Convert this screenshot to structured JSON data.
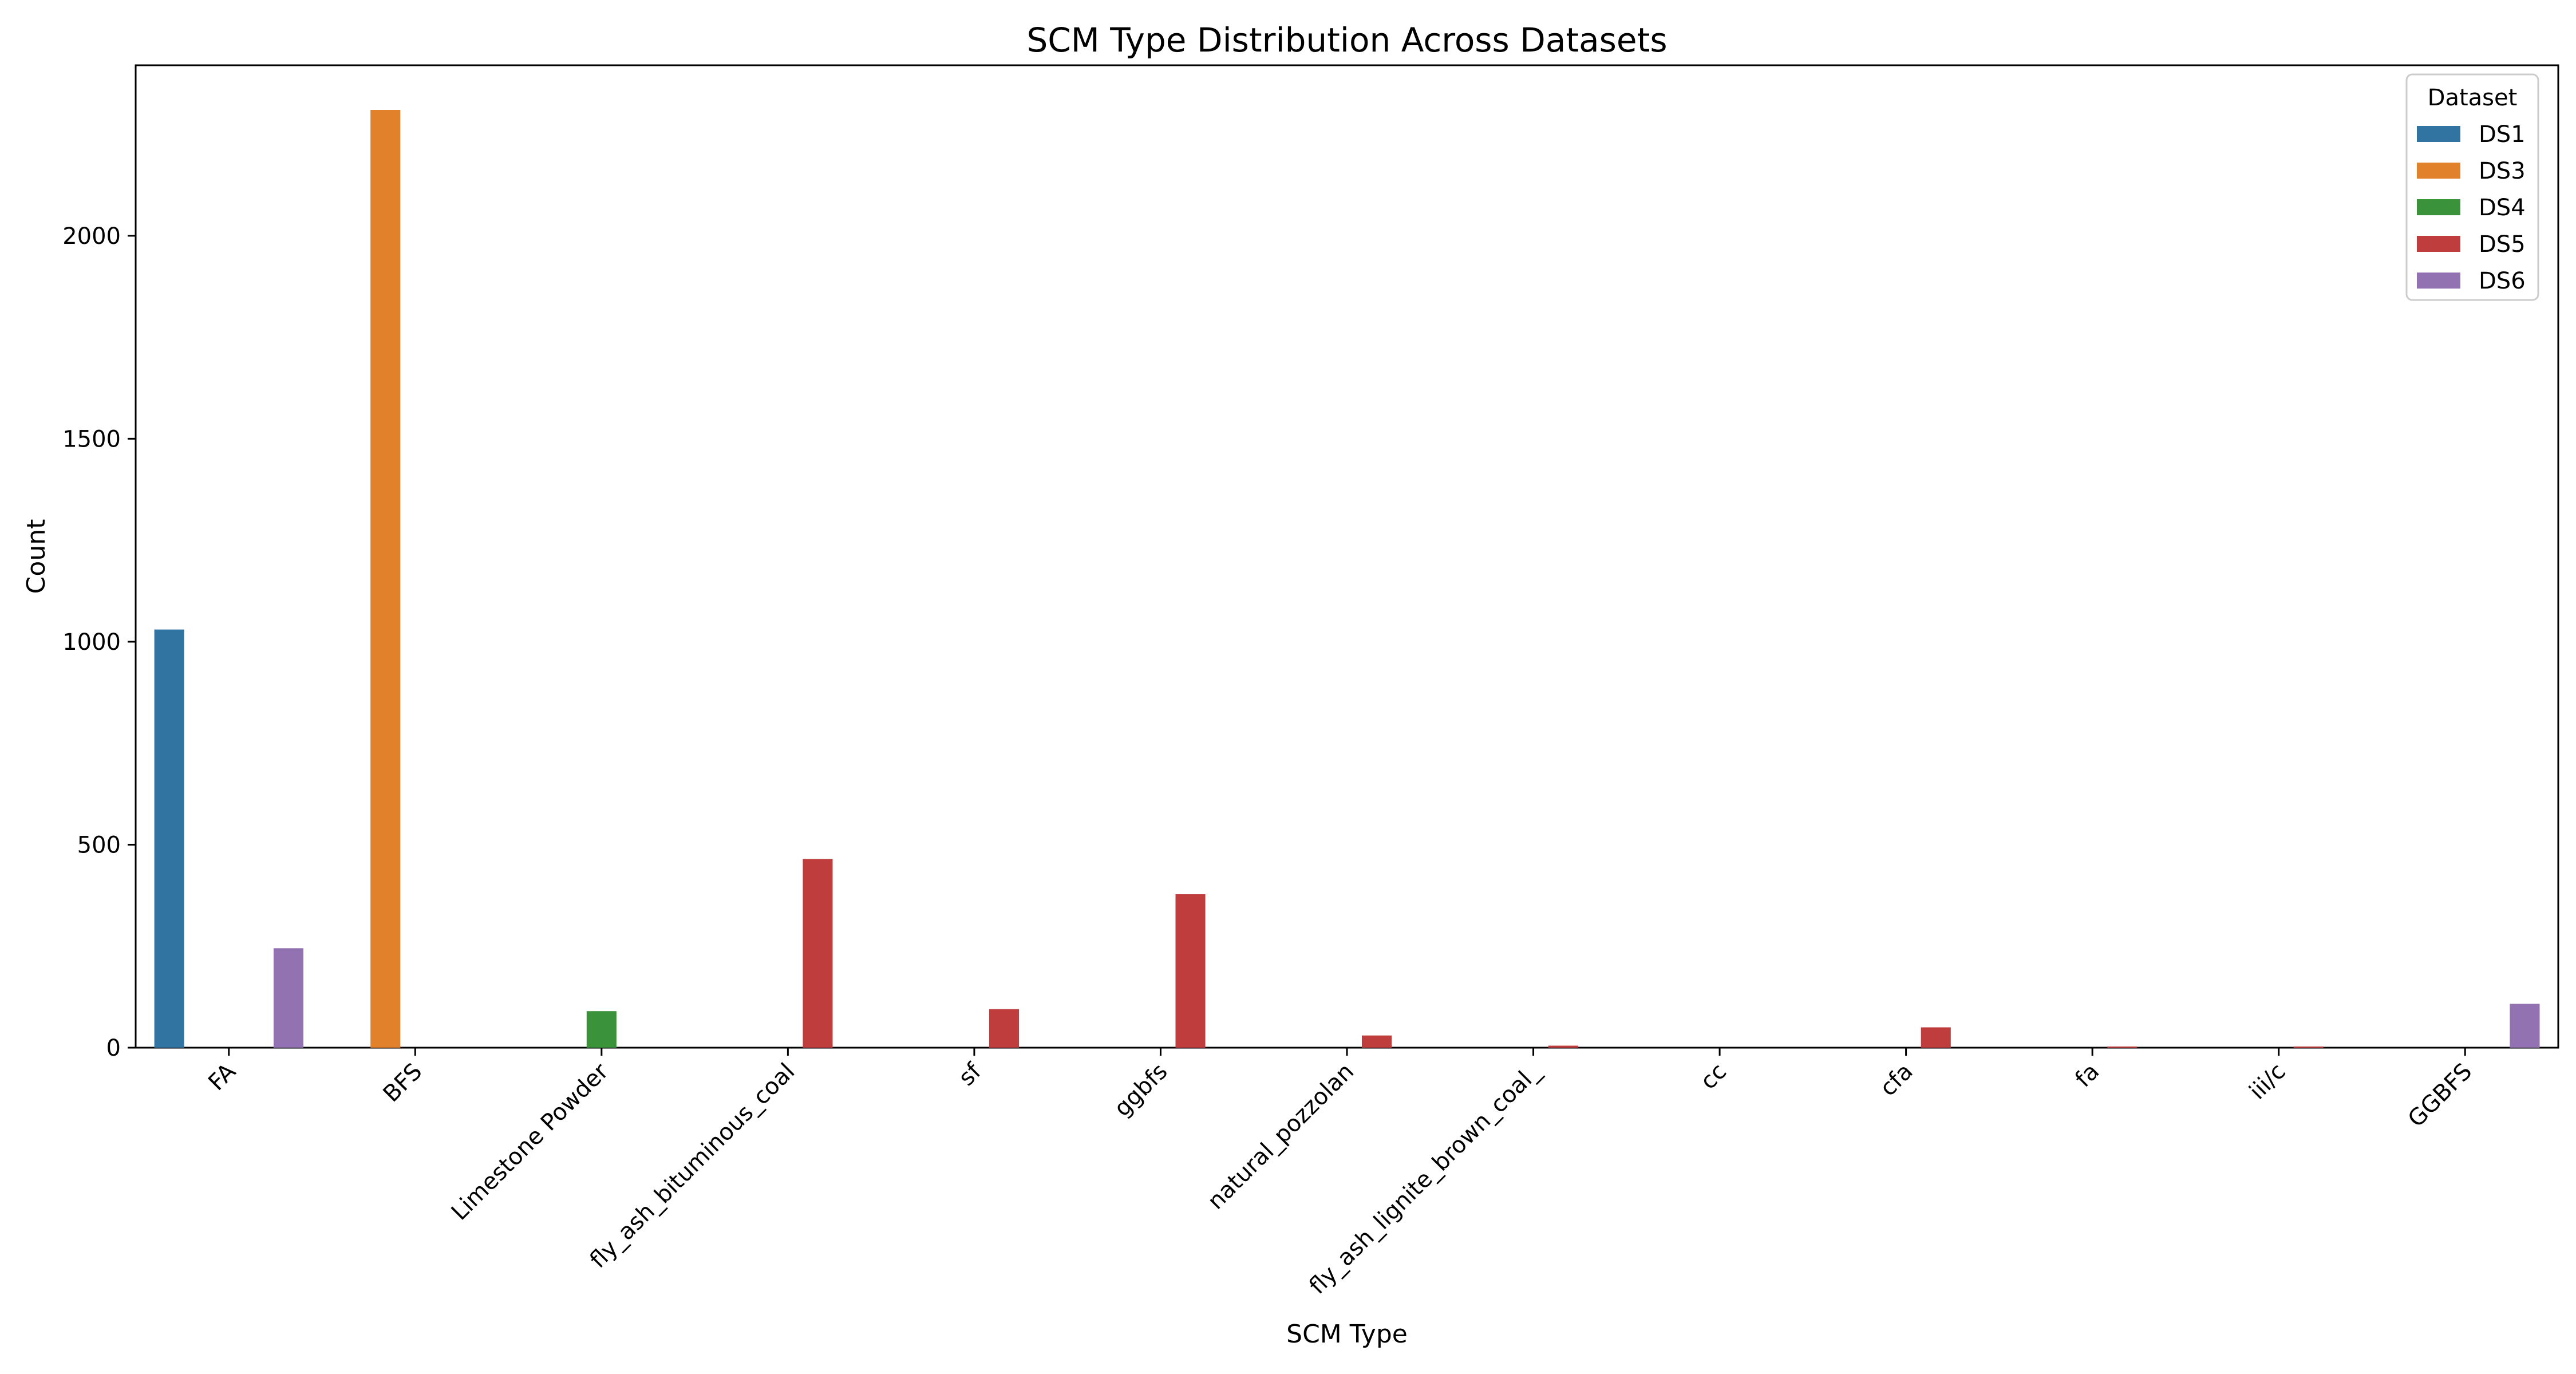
{
  "chart_data": {
    "type": "bar",
    "title": "SCM Type Distribution Across Datasets",
    "xlabel": "SCM Type",
    "ylabel": "Count",
    "ylim": [
      0,
      2420
    ],
    "yticks": [
      0,
      500,
      1000,
      1500,
      2000
    ],
    "grid": false,
    "legend": {
      "title": "Dataset",
      "placement": "top-right"
    },
    "categories": [
      "FA",
      "BFS",
      "Limestone Powder",
      "fly_ash_bituminous_coal",
      "sf",
      "ggbfs",
      "natural_pozzolan",
      "fly_ash_lignite_brown_coal_",
      "cc",
      "cfa",
      "fa",
      "iii/c",
      "GGBFS"
    ],
    "series": [
      {
        "name": "DS1",
        "color": "#3274a1",
        "values": [
          1030,
          0,
          0,
          0,
          0,
          0,
          0,
          0,
          0,
          0,
          0,
          0,
          0
        ]
      },
      {
        "name": "DS3",
        "color": "#e1812c",
        "values": [
          0,
          2310,
          0,
          0,
          0,
          0,
          0,
          0,
          0,
          0,
          0,
          0,
          0
        ]
      },
      {
        "name": "DS4",
        "color": "#3a923a",
        "values": [
          0,
          0,
          90,
          0,
          0,
          0,
          0,
          0,
          0,
          0,
          0,
          0,
          0
        ]
      },
      {
        "name": "DS5",
        "color": "#c03d3e",
        "values": [
          0,
          0,
          0,
          465,
          95,
          378,
          30,
          5,
          0,
          50,
          3,
          3,
          0
        ]
      },
      {
        "name": "DS6",
        "color": "#9372b2",
        "values": [
          245,
          0,
          0,
          0,
          0,
          0,
          0,
          0,
          0,
          0,
          0,
          0,
          108
        ]
      }
    ]
  }
}
